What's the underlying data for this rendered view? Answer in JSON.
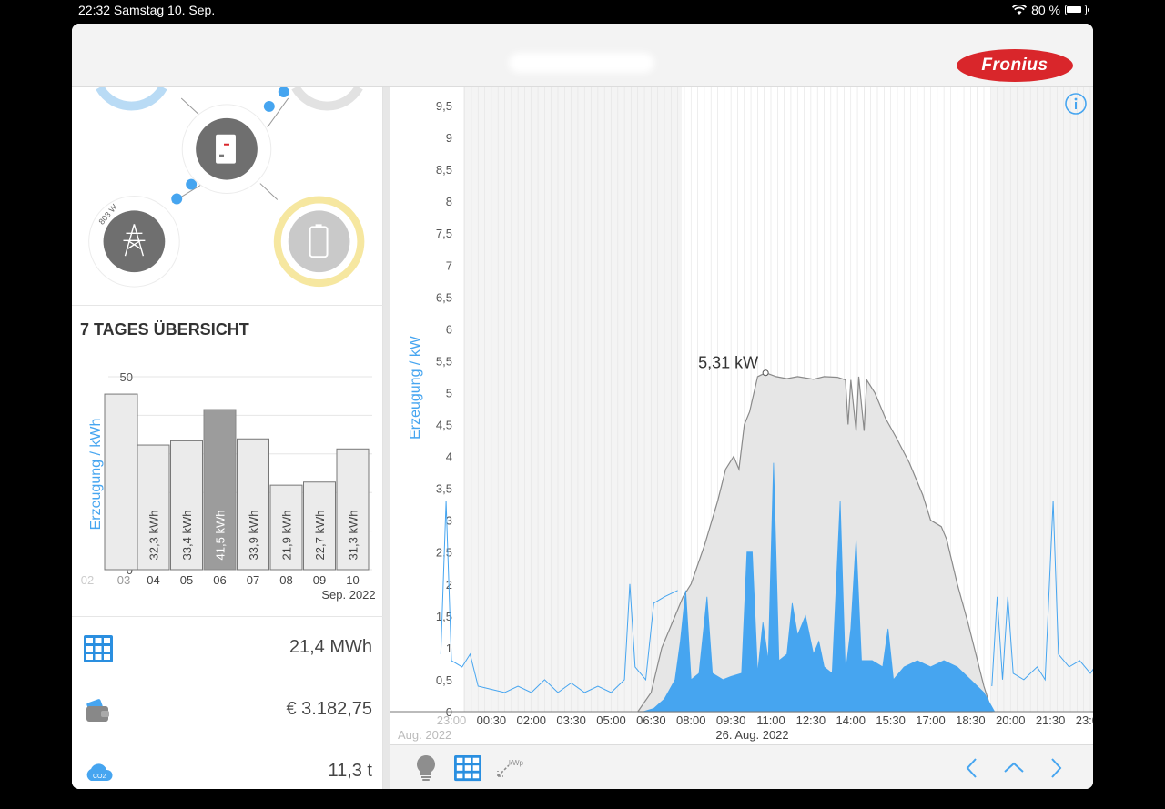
{
  "status_bar": {
    "time_date": "22:32   Samstag 10. Sep.",
    "battery_text": "80 %"
  },
  "header": {
    "logo_text": "Fronius"
  },
  "flow": {
    "grid_power": "803 W"
  },
  "overview": {
    "title": "7 TAGES ÜBERSICHT",
    "ylabel": "Erzeugung / kWh",
    "month_label": "Sep. 2022"
  },
  "stats": {
    "energy_total": "21,4 MWh",
    "earnings": "€ 3.182,75",
    "co2_saved": "11,3 t"
  },
  "main_chart": {
    "ylabel": "Erzeugung / kW",
    "peak_label": "5,31 kW",
    "date_label": "26. Aug. 2022",
    "left_date_label": "Aug. 2022"
  },
  "toolbar": {
    "kwp_label": "kWp"
  },
  "colors": {
    "accent": "#46a5f0",
    "brand": "#d9262b",
    "battery": "#f7e9a6"
  },
  "chart_data": [
    {
      "type": "bar",
      "title": "7 TAGES ÜBERSICHT",
      "ylabel": "Erzeugung / kWh",
      "xlabel": "Sep. 2022",
      "ylim": [
        0,
        50
      ],
      "yticks": [
        0,
        10,
        20,
        30,
        40,
        50
      ],
      "categories": [
        "03",
        "04",
        "05",
        "06",
        "07",
        "08",
        "09",
        "10"
      ],
      "values": [
        45.5,
        32.3,
        33.4,
        41.5,
        33.9,
        21.9,
        22.7,
        31.3
      ],
      "value_labels": [
        "",
        "32,3 kWh",
        "33,4 kWh",
        "41,5 kWh",
        "33,9 kWh",
        "21,9 kWh",
        "22,7 kWh",
        "31,3 kWh"
      ],
      "selected_category": "06",
      "partial_left_label": "02"
    },
    {
      "type": "area",
      "ylabel": "Erzeugung / kW",
      "ylim": [
        0,
        9.5
      ],
      "yticks": [
        "0",
        "0,5",
        "1",
        "1,5",
        "2",
        "2,5",
        "3",
        "3,5",
        "4",
        "4,5",
        "5",
        "5,5",
        "6",
        "6,5",
        "7",
        "7,5",
        "8",
        "8,5",
        "9",
        "9,5"
      ],
      "xticks": [
        "23:00",
        "00:30",
        "02:00",
        "03:30",
        "05:00",
        "06:30",
        "08:00",
        "09:30",
        "11:00",
        "12:30",
        "14:00",
        "15:30",
        "17:00",
        "18:30",
        "20:00",
        "21:30",
        "23:00"
      ],
      "peak": {
        "x": "10:45",
        "y": 5.31,
        "label": "5,31 kW"
      },
      "series": [
        {
          "role": "production",
          "points": [
            [
              6.0,
              0
            ],
            [
              6.5,
              0.3
            ],
            [
              6.9,
              1.0
            ],
            [
              7.3,
              1.4
            ],
            [
              7.7,
              1.8
            ],
            [
              8.0,
              2.0
            ],
            [
              8.5,
              2.6
            ],
            [
              9.0,
              3.3
            ],
            [
              9.3,
              3.8
            ],
            [
              9.6,
              4.0
            ],
            [
              9.8,
              3.8
            ],
            [
              10.0,
              4.5
            ],
            [
              10.2,
              4.7
            ],
            [
              10.5,
              5.25
            ],
            [
              10.8,
              5.31
            ],
            [
              11.2,
              5.25
            ],
            [
              11.6,
              5.22
            ],
            [
              12.0,
              5.25
            ],
            [
              12.6,
              5.21
            ],
            [
              13.0,
              5.25
            ],
            [
              13.5,
              5.24
            ],
            [
              13.8,
              5.2
            ],
            [
              13.9,
              4.5
            ],
            [
              14.0,
              5.2
            ],
            [
              14.2,
              4.4
            ],
            [
              14.3,
              5.25
            ],
            [
              14.5,
              4.4
            ],
            [
              14.6,
              5.2
            ],
            [
              14.9,
              5.0
            ],
            [
              15.3,
              4.6
            ],
            [
              15.7,
              4.3
            ],
            [
              16.2,
              3.9
            ],
            [
              16.7,
              3.4
            ],
            [
              17.0,
              3.0
            ],
            [
              17.4,
              2.9
            ],
            [
              17.6,
              2.7
            ],
            [
              18.0,
              2.0
            ],
            [
              18.4,
              1.4
            ],
            [
              18.7,
              0.9
            ],
            [
              19.0,
              0.4
            ],
            [
              19.3,
              0
            ]
          ]
        },
        {
          "role": "consumption",
          "points": [
            [
              6.2,
              0
            ],
            [
              6.6,
              0.05
            ],
            [
              7.0,
              0.2
            ],
            [
              7.4,
              0.5
            ],
            [
              7.6,
              1.1
            ],
            [
              7.8,
              1.9
            ],
            [
              8.0,
              0.5
            ],
            [
              8.3,
              0.6
            ],
            [
              8.6,
              1.8
            ],
            [
              8.8,
              0.6
            ],
            [
              9.2,
              0.5
            ],
            [
              9.5,
              0.55
            ],
            [
              9.9,
              0.6
            ],
            [
              10.1,
              2.5
            ],
            [
              10.3,
              2.5
            ],
            [
              10.5,
              0.6
            ],
            [
              10.7,
              1.4
            ],
            [
              10.9,
              0.8
            ],
            [
              11.1,
              3.9
            ],
            [
              11.3,
              0.8
            ],
            [
              11.6,
              0.9
            ],
            [
              11.8,
              1.7
            ],
            [
              12.0,
              1.2
            ],
            [
              12.3,
              1.5
            ],
            [
              12.6,
              0.9
            ],
            [
              12.8,
              1.1
            ],
            [
              13.0,
              0.7
            ],
            [
              13.3,
              0.6
            ],
            [
              13.6,
              3.3
            ],
            [
              13.8,
              0.6
            ],
            [
              14.0,
              1.3
            ],
            [
              14.2,
              2.7
            ],
            [
              14.4,
              0.8
            ],
            [
              14.8,
              0.8
            ],
            [
              15.2,
              0.7
            ],
            [
              15.4,
              1.3
            ],
            [
              15.6,
              0.5
            ],
            [
              16.0,
              0.7
            ],
            [
              16.5,
              0.8
            ],
            [
              17.0,
              0.7
            ],
            [
              17.5,
              0.8
            ],
            [
              18.0,
              0.7
            ],
            [
              18.5,
              0.5
            ],
            [
              19.0,
              0.3
            ],
            [
              19.4,
              0
            ]
          ]
        }
      ]
    }
  ]
}
